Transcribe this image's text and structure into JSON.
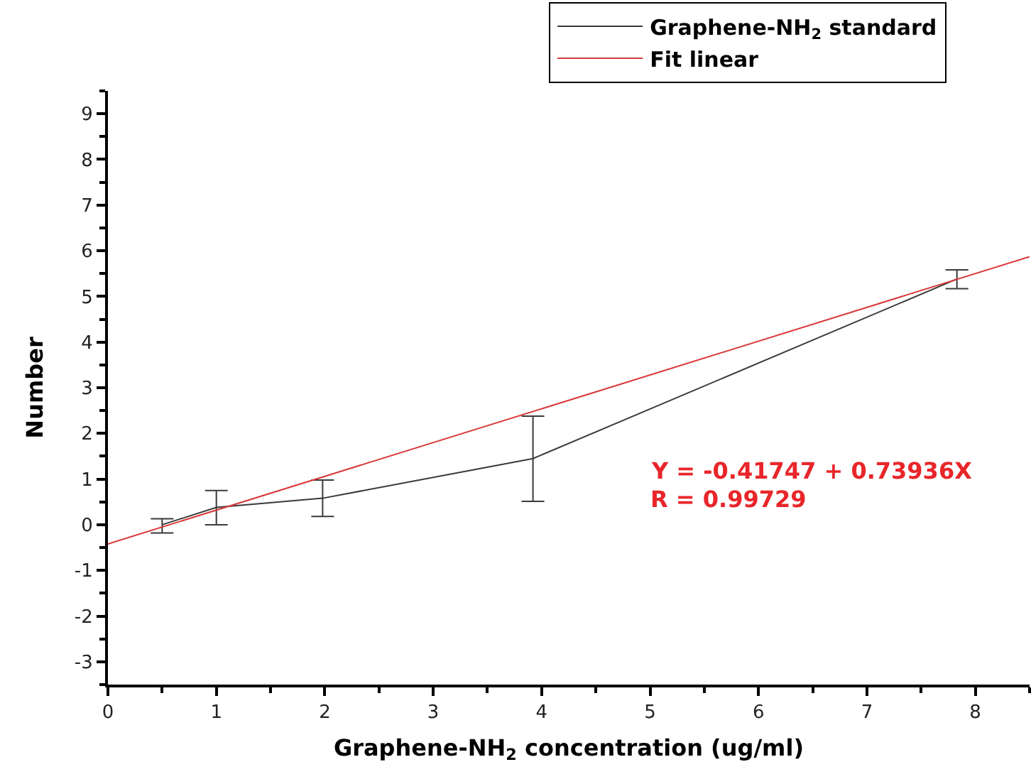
{
  "chart_data": {
    "type": "line",
    "xlabel": "Graphene-NH$_{2}$ concentration (ug/ml)",
    "ylabel": "Number",
    "xlim": [
      0,
      8.5
    ],
    "xticks": [
      0,
      1,
      2,
      3,
      4,
      5,
      6,
      7,
      8
    ],
    "ylim": [
      -3.5,
      9.5
    ],
    "yticks": [
      -3,
      -2,
      -1,
      0,
      1,
      2,
      3,
      4,
      5,
      6,
      7,
      8,
      9
    ],
    "legend": "top right",
    "marker": "none",
    "line_style": "solid",
    "series": [
      {
        "name": "Graphene-NH$_{2}$ standard",
        "color": "#3a3a3a",
        "x": [
          0.5,
          1.0,
          1.98,
          3.92,
          7.83
        ],
        "values": [
          0.0,
          0.38,
          0.58,
          1.45,
          5.38
        ],
        "errors": [
          [
            -0.18,
            0.13
          ],
          [
            0.0,
            0.75
          ],
          [
            0.18,
            0.98
          ],
          [
            0.51,
            2.38
          ],
          [
            5.17,
            5.58
          ]
        ]
      },
      {
        "name": "Fit linear",
        "color": "#d9383a",
        "x": [
          0,
          8.5
        ],
        "values": [
          -0.42,
          5.87
        ]
      }
    ],
    "annotations": [
      "Y = -0.41747 + 0.73936X",
      "R = 0.99729"
    ]
  }
}
